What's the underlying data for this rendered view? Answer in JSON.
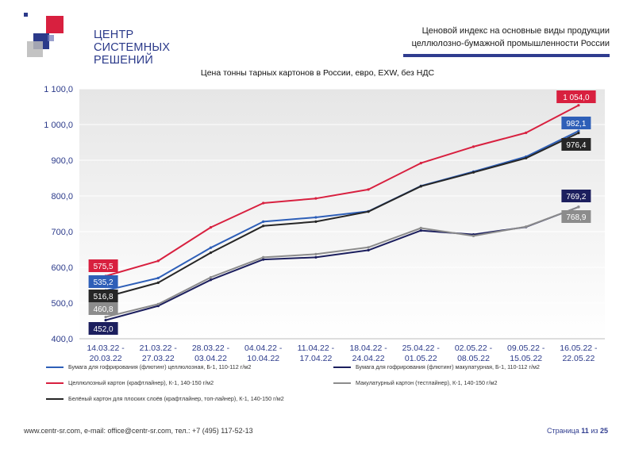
{
  "logo": {
    "line1": "ЦЕНТР",
    "line2": "СИСТЕМНЫХ",
    "line3": "РЕШЕНИЙ"
  },
  "header": {
    "line1": "Ценовой индекс на основные виды продукции",
    "line2": "целлюлозно-бумажной промышленности России"
  },
  "footer": {
    "contacts": "www.centr-sr.com, e-mail: office@centr-sr.com, тел.: +7 (495) 117-52-13",
    "page_prefix": "Страница",
    "page_current": "11",
    "page_sep": "из",
    "page_total": "25"
  },
  "chart_data": {
    "type": "line",
    "title": "Цена тонны тарных картонов в России, евро, EXW, без НДС",
    "categories": [
      [
        "14.03.22 -",
        "20.03.22"
      ],
      [
        "21.03.22 -",
        "27.03.22"
      ],
      [
        "28.03.22 -",
        "03.04.22"
      ],
      [
        "04.04.22 -",
        "10.04.22"
      ],
      [
        "11.04.22 -",
        "17.04.22"
      ],
      [
        "18.04.22 -",
        "24.04.22"
      ],
      [
        "25.04.22 -",
        "01.05.22"
      ],
      [
        "02.05.22 -",
        "08.05.22"
      ],
      [
        "09.05.22 -",
        "15.05.22"
      ],
      [
        "16.05.22 -",
        "22.05.22"
      ]
    ],
    "ylim": [
      400,
      1100
    ],
    "yticks": [
      400,
      500,
      600,
      700,
      800,
      900,
      1000,
      1100
    ],
    "ytick_labels": [
      "400,0",
      "500,0",
      "600,0",
      "700,0",
      "800,0",
      "900,0",
      "1 000,0",
      "1 100,0"
    ],
    "grid": true,
    "series": [
      {
        "name": "Бумага для гофрирования (флютинг) целлюлозная, Б-1, 110-112 г/м2",
        "color": "#2e5fb8",
        "values": [
          535.2,
          570,
          655,
          728,
          740,
          757,
          828,
          868,
          910,
          982.1
        ],
        "labels": [
          "535,2",
          null,
          null,
          null,
          null,
          null,
          null,
          null,
          null,
          "982,1"
        ]
      },
      {
        "name": "Бумага для гофрирования (флютинг) макулатурная, Б-1, 110-112 г/м2",
        "color": "#1c1f5e",
        "values": [
          452.0,
          492,
          565,
          622,
          628,
          648,
          703,
          692,
          713,
          769.2
        ],
        "labels": [
          "452,0",
          null,
          null,
          null,
          null,
          null,
          null,
          null,
          null,
          "769,2"
        ]
      },
      {
        "name": "Целлюлозный картон (крафтлайнер), К-1, 140-150 г/м2",
        "color": "#d8203f",
        "values": [
          575.5,
          618,
          712,
          780,
          793,
          818,
          892,
          938,
          977,
          1054.0
        ],
        "labels": [
          "575,5",
          null,
          null,
          null,
          null,
          null,
          null,
          null,
          null,
          "1 054,0"
        ]
      },
      {
        "name": "Макулатурный картон (тестлайнер), К-1, 140-150 г/м2",
        "color": "#8c8c8c",
        "values": [
          460.8,
          497,
          572,
          628,
          637,
          656,
          710,
          688,
          714,
          768.9
        ],
        "labels": [
          "460,8",
          null,
          null,
          null,
          null,
          null,
          null,
          null,
          null,
          "768,9"
        ]
      },
      {
        "name": "Белёный картон для плоских слоёв (крафтлайнер, топ-лайнер), К-1, 140-150 г/м2",
        "color": "#262626",
        "values": [
          516.8,
          557,
          641,
          716,
          728,
          756,
          827,
          866,
          906,
          976.4
        ],
        "labels": [
          "516,8",
          null,
          null,
          null,
          null,
          null,
          null,
          null,
          null,
          "976,4"
        ]
      }
    ]
  }
}
